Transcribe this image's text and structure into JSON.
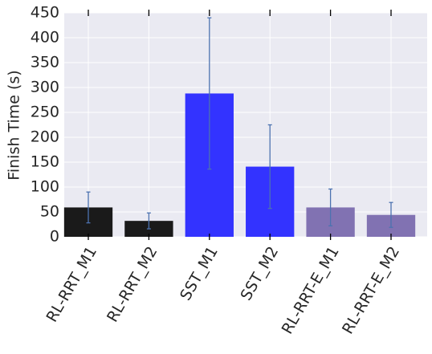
{
  "chart_data": {
    "type": "bar",
    "y_label": "Finish Time (s)",
    "categories": [
      "RL-RRT_M1",
      "RL-RRT_M2",
      "SST_M1",
      "SST_M2",
      "RL-RRT-E_M1",
      "RL-RRT-E_M2"
    ],
    "values": [
      59,
      32,
      288,
      141,
      59,
      44
    ],
    "errors": [
      31,
      16,
      152,
      84,
      37,
      25
    ],
    "colors": [
      "#1a1a1a",
      "#1a1a1a",
      "#3333ff",
      "#3333ff",
      "#8172b2",
      "#8172b2"
    ],
    "error_color": "#4c72b0",
    "ylim": [
      0,
      450
    ],
    "yticks": [
      0,
      50,
      100,
      150,
      200,
      250,
      300,
      350,
      400,
      450
    ],
    "grid": true
  }
}
